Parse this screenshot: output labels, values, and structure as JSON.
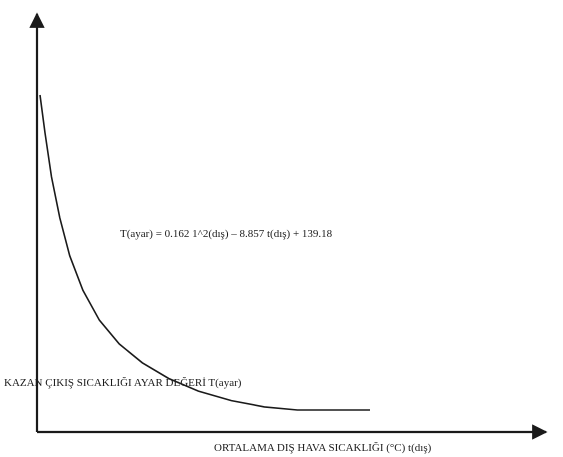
{
  "chart_data": {
    "type": "line",
    "title": "",
    "equation": "T(ayar) = 0.162  1^2(dış) – 8.857 t(dış) + 139.18",
    "xlabel": "ORTALAMA DIŞ HAVA SICAKLIĞI (°C)   t(dış)",
    "ylabel": "KAZAN ÇIKIŞ SICAKLIĞI AYAR DEĞERİ  T(ayar)",
    "grid": false,
    "axis_ticks": false,
    "series": [
      {
        "style": "curve",
        "color": "#1a1a1a",
        "shape_samples": [
          {
            "x": 0.0,
            "y": 1.0
          },
          {
            "x": 0.015,
            "y": 0.88
          },
          {
            "x": 0.035,
            "y": 0.74
          },
          {
            "x": 0.06,
            "y": 0.61
          },
          {
            "x": 0.09,
            "y": 0.49
          },
          {
            "x": 0.13,
            "y": 0.38
          },
          {
            "x": 0.18,
            "y": 0.285
          },
          {
            "x": 0.24,
            "y": 0.21
          },
          {
            "x": 0.31,
            "y": 0.15
          },
          {
            "x": 0.39,
            "y": 0.1
          },
          {
            "x": 0.48,
            "y": 0.06
          },
          {
            "x": 0.58,
            "y": 0.03
          },
          {
            "x": 0.68,
            "y": 0.01
          },
          {
            "x": 0.78,
            "y": 0.0
          },
          {
            "x": 1.0,
            "y": 0.0
          }
        ]
      }
    ]
  }
}
